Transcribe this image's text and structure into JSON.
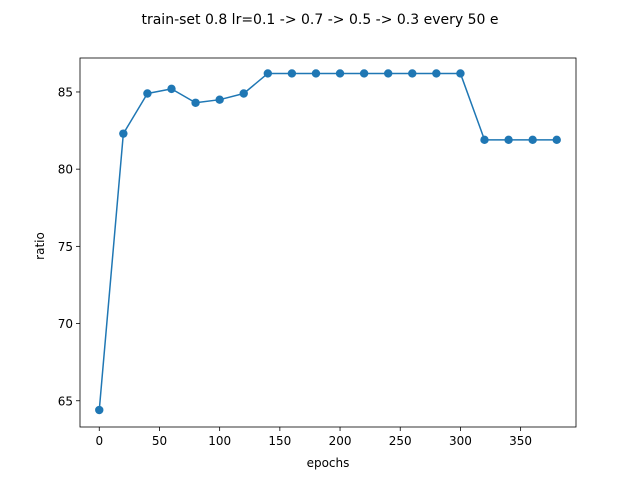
{
  "chart_data": {
    "type": "line",
    "title": "train-set 0.8 lr=0.1 -> 0.7 -> 0.5 -> 0.3 every 50 e",
    "xlabel": "epochs",
    "ylabel": "ratio",
    "xlim": [
      -16,
      396
    ],
    "ylim": [
      63.3,
      87.2
    ],
    "xticks": [
      0,
      50,
      100,
      150,
      200,
      250,
      300,
      350
    ],
    "yticks": [
      65,
      70,
      75,
      80,
      85
    ],
    "grid": false,
    "legend": "none",
    "series": [
      {
        "color": "#1f77b4",
        "marker": "circle",
        "x": [
          0,
          20,
          40,
          60,
          80,
          100,
          120,
          140,
          160,
          180,
          200,
          220,
          240,
          260,
          280,
          300,
          320,
          340,
          360,
          380
        ],
        "y": [
          64.4,
          82.3,
          84.9,
          85.2,
          84.3,
          84.5,
          84.9,
          86.2,
          86.2,
          86.2,
          86.2,
          86.2,
          86.2,
          86.2,
          86.2,
          86.2,
          81.9,
          81.9,
          81.9,
          81.9
        ]
      }
    ]
  }
}
